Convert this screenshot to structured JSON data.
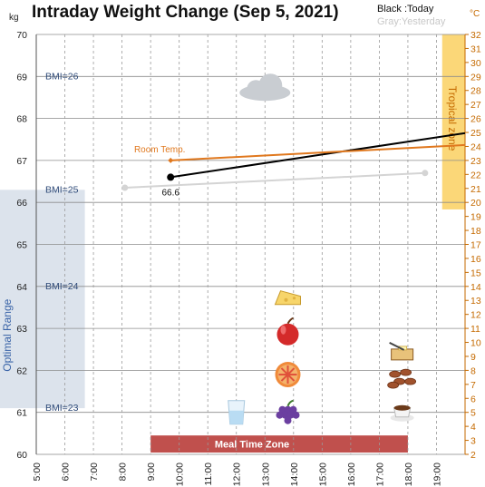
{
  "title": "Intraday Weight Change (Sep 5, 2021)",
  "legend": {
    "today": "Black :Today",
    "yesterday": "Gray:Yesterday"
  },
  "colors": {
    "today": "#000000",
    "yesterday": "#d4d4d4",
    "room_temp": "#e0781e",
    "optimal_range": "#dce3ec",
    "tropical_zone": "#fbd778",
    "meal_zone": "#c0504d",
    "right_axis": "#c56a00"
  },
  "chart_data": {
    "type": "line",
    "title": "Intraday Weight Change (Sep 5, 2021)",
    "y_left": {
      "unit": "kg",
      "ylim": [
        60,
        70
      ],
      "ticks": [
        "60",
        "61",
        "62",
        "63",
        "64",
        "65",
        "66",
        "67",
        "68",
        "69",
        "70"
      ]
    },
    "y_right": {
      "unit": "°C",
      "ylim": [
        2,
        32
      ],
      "ticks": [
        "2",
        "3",
        "4",
        "5",
        "6",
        "7",
        "8",
        "9",
        "10",
        "11",
        "12",
        "13",
        "14",
        "15",
        "16",
        "17",
        "18",
        "19",
        "20",
        "21",
        "22",
        "23",
        "24",
        "25",
        "26",
        "27",
        "28",
        "29",
        "30",
        "31",
        "32"
      ]
    },
    "x": {
      "xlim": [
        5,
        20
      ],
      "ticks": [
        "5:00",
        "6:00",
        "7:00",
        "8:00",
        "9:00",
        "10:00",
        "11:00",
        "12:00",
        "13:00",
        "14:00",
        "15:00",
        "16:00",
        "17:00",
        "18:00",
        "19:00"
      ]
    },
    "grid": true,
    "series": [
      {
        "key": "today",
        "axis": "left",
        "points": [
          [
            9.7,
            66.6
          ],
          [
            20.0,
            67.65
          ]
        ],
        "start_label": "66.6"
      },
      {
        "key": "yesterday",
        "axis": "left",
        "points": [
          [
            8.1,
            66.35
          ],
          [
            18.6,
            66.7
          ]
        ]
      },
      {
        "name": "Room Temp.",
        "axis": "right",
        "points": [
          [
            9.7,
            23.0
          ],
          [
            20.0,
            24.1
          ]
        ]
      }
    ],
    "bmi_lines": [
      {
        "label": "BMI=26",
        "y": 69.0
      },
      {
        "label": "BMI=25",
        "y": 66.3
      },
      {
        "label": "BMI=24",
        "y": 64.0
      },
      {
        "label": "BMI=23",
        "y": 61.1
      }
    ],
    "bands": {
      "optimal_range": {
        "label": "Optimal Range",
        "y": [
          61.1,
          66.3
        ]
      },
      "tropical_zone": {
        "label": "Tropical zone",
        "y_right": [
          19.5,
          32
        ]
      },
      "meal_time_zone": {
        "label": "Meal Time Zone",
        "x": [
          9.0,
          18.0
        ]
      }
    },
    "icons": [
      {
        "name": "cloud-icon",
        "x": 13.0,
        "y": 68.7
      },
      {
        "name": "cheese-icon",
        "x": 13.8,
        "y": 63.7
      },
      {
        "name": "apple-icon",
        "x": 13.8,
        "y": 62.9
      },
      {
        "name": "grapefruit-icon",
        "x": 13.8,
        "y": 61.9
      },
      {
        "name": "grapes-icon",
        "x": 13.8,
        "y": 61.0
      },
      {
        "name": "water-glass-icon",
        "x": 12.0,
        "y": 61.0
      },
      {
        "name": "toast-butter-icon",
        "x": 17.8,
        "y": 62.4
      },
      {
        "name": "dates-icon",
        "x": 17.8,
        "y": 61.8
      },
      {
        "name": "coffee-cup-icon",
        "x": 17.8,
        "y": 61.0
      }
    ]
  }
}
